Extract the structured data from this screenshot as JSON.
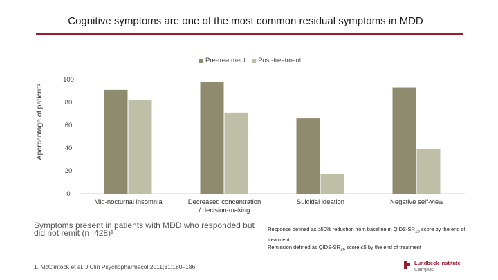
{
  "title": "Cognitive symptoms are one of the most common residual symptoms in MDD",
  "colors": {
    "accent": "#9b1b30",
    "pre": "#8f8b6e",
    "post": "#bfbfa8"
  },
  "chart_data": {
    "type": "bar",
    "title": "",
    "xlabel": "",
    "ylabel": "Apercentage of patients",
    "ylim": [
      0,
      100
    ],
    "yticks": [
      0,
      20,
      40,
      60,
      80,
      100
    ],
    "grid": false,
    "legend": [
      "Pre-treatment",
      "Post-treatment"
    ],
    "categories": [
      "Mid-nocturnal insomnia",
      "Decreased concentration / decision-making",
      "Suicidal ideation",
      "Negative self-view"
    ],
    "category_lines": [
      [
        "Mid-nocturnal insomnia"
      ],
      [
        "Decreased concentration",
        "/ decision-making"
      ],
      [
        "Suicidal ideation"
      ],
      [
        "Negative self-view"
      ]
    ],
    "series": [
      {
        "name": "Pre-treatment",
        "values": [
          91,
          98,
          66,
          93
        ]
      },
      {
        "name": "Post-treatment",
        "values": [
          82,
          71,
          17,
          39
        ]
      }
    ]
  },
  "notes": {
    "left": "Symptoms present in patients with MDD who responded but did not remit (n=428)¹",
    "right_line1_pre": "Response defined as ≥50% reduction from baseline in QIDS-SR",
    "right_line1_sub": "16",
    "right_line1_post": " score by the end of treatment",
    "right_line2_pre": "Remission defined as QIDS-SR",
    "right_line2_sub": "16",
    "right_line2_post": " score ≤5 by the end of treatment"
  },
  "reference": "1. McClintock et al. J Clin Psychopharmacol 2011;31:180–186.",
  "logo": {
    "line1": "Lundbeck Institute",
    "line2": "Campus"
  }
}
